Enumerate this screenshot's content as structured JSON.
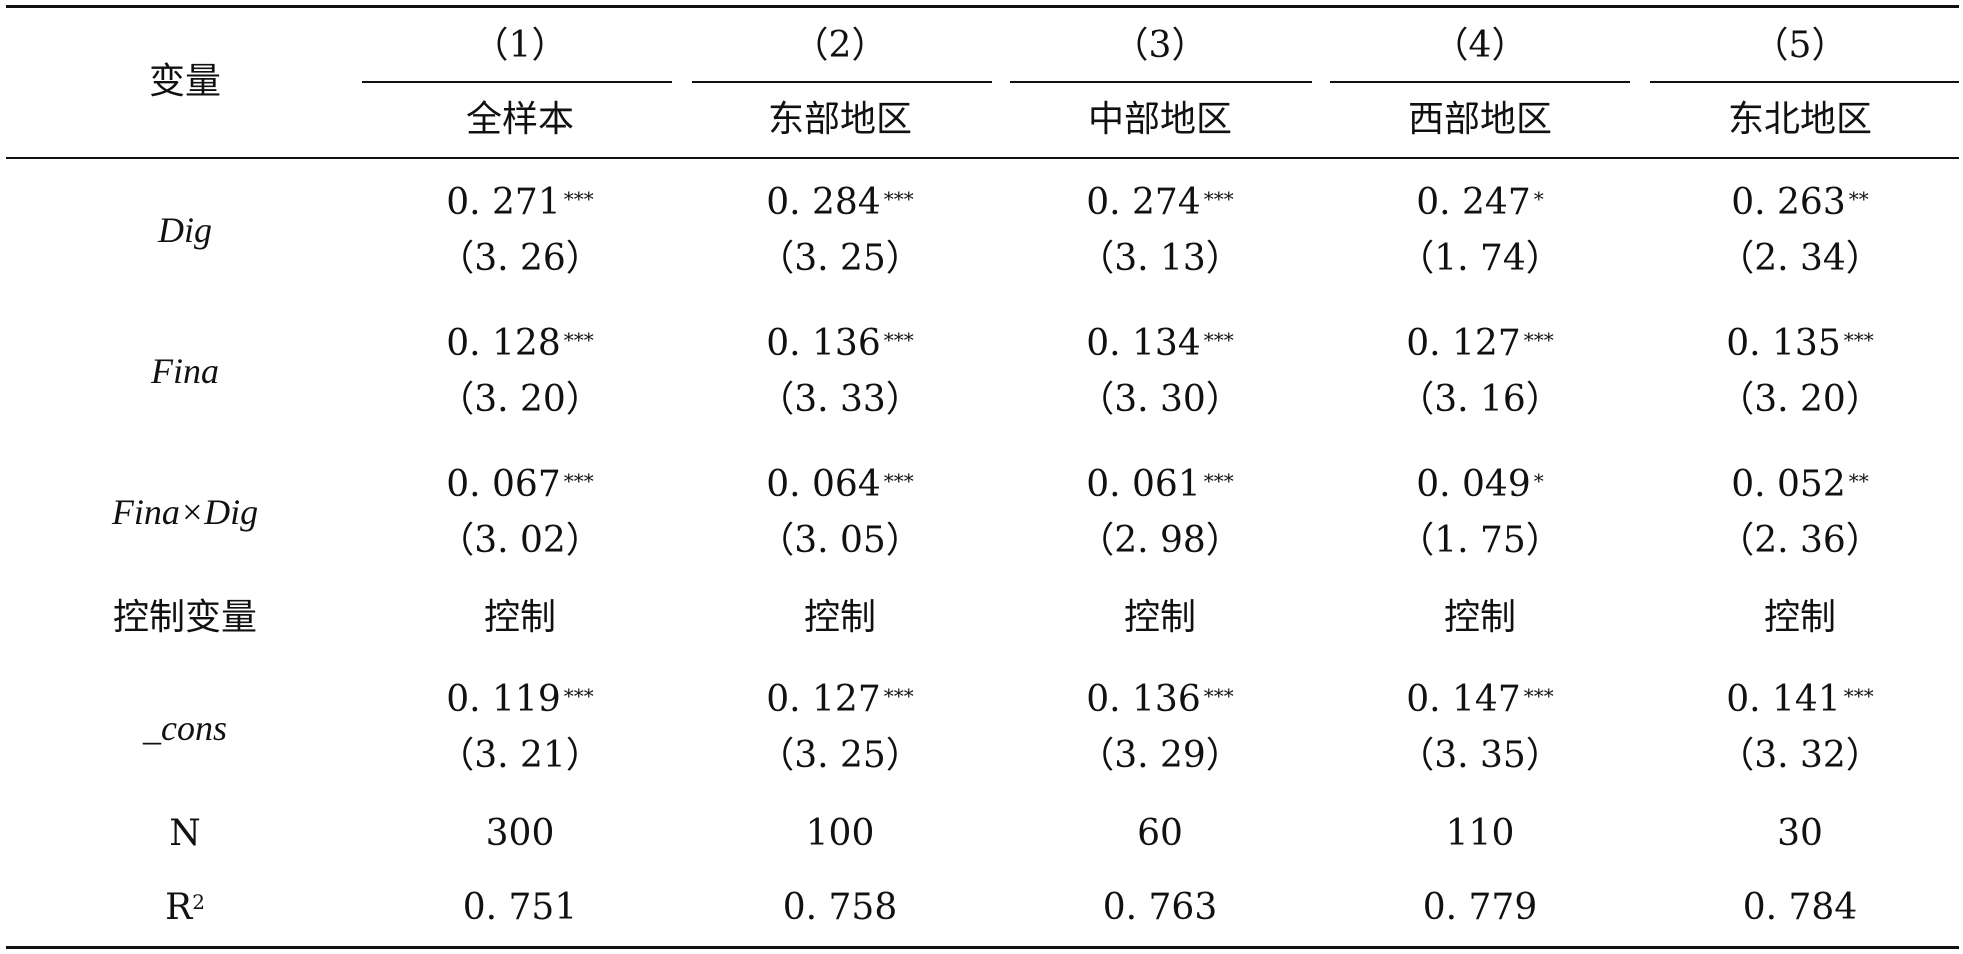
{
  "table": {
    "header": {
      "variable_label": "变量",
      "columns": [
        {
          "number": "（1）",
          "name": "全样本"
        },
        {
          "number": "（2）",
          "name": "东部地区"
        },
        {
          "number": "（3）",
          "name": "中部地区"
        },
        {
          "number": "（4）",
          "name": "西部地区"
        },
        {
          "number": "（5）",
          "name": "东北地区"
        }
      ]
    },
    "coef_rows": [
      {
        "name": "Dig",
        "cells": [
          {
            "coef": "0. 271",
            "stars": "***",
            "t": "（3. 26）"
          },
          {
            "coef": "0. 284",
            "stars": "***",
            "t": "（3. 25）"
          },
          {
            "coef": "0. 274",
            "stars": "***",
            "t": "（3. 13）"
          },
          {
            "coef": "0. 247",
            "stars": "*",
            "t": "（1. 74）"
          },
          {
            "coef": "0. 263",
            "stars": "**",
            "t": "（2. 34）"
          }
        ]
      },
      {
        "name": "Fina",
        "cells": [
          {
            "coef": "0. 128",
            "stars": "***",
            "t": "（3. 20）"
          },
          {
            "coef": "0. 136",
            "stars": "***",
            "t": "（3. 33）"
          },
          {
            "coef": "0. 134",
            "stars": "***",
            "t": "（3. 30）"
          },
          {
            "coef": "0. 127",
            "stars": "***",
            "t": "（3. 16）"
          },
          {
            "coef": "0. 135",
            "stars": "***",
            "t": "（3. 20）"
          }
        ]
      },
      {
        "name": "Fina×Dig",
        "cells": [
          {
            "coef": "0. 067",
            "stars": "***",
            "t": "（3. 02）"
          },
          {
            "coef": "0. 064",
            "stars": "***",
            "t": "（3. 05）"
          },
          {
            "coef": "0. 061",
            "stars": "***",
            "t": "（2. 98）"
          },
          {
            "coef": "0. 049",
            "stars": "*",
            "t": "（1. 75）"
          },
          {
            "coef": "0. 052",
            "stars": "**",
            "t": "（2. 36）"
          }
        ]
      }
    ],
    "controls_row": {
      "name": "控制变量",
      "cells": [
        "控制",
        "控制",
        "控制",
        "控制",
        "控制"
      ]
    },
    "cons_row": {
      "name": "_cons",
      "cells": [
        {
          "coef": "0. 119",
          "stars": "***",
          "t": "（3. 21）"
        },
        {
          "coef": "0. 127",
          "stars": "***",
          "t": "（3. 25）"
        },
        {
          "coef": "0. 136",
          "stars": "***",
          "t": "（3. 29）"
        },
        {
          "coef": "0. 147",
          "stars": "***",
          "t": "（3. 35）"
        },
        {
          "coef": "0. 141",
          "stars": "***",
          "t": "（3. 32）"
        }
      ]
    },
    "n_row": {
      "name": "N",
      "cells": [
        "300",
        "100",
        "60",
        "110",
        "30"
      ]
    },
    "r2_row": {
      "name_base": "R",
      "name_sup": "2",
      "cells": [
        "0. 751",
        "0. 758",
        "0. 763",
        "0. 779",
        "0. 784"
      ]
    }
  }
}
